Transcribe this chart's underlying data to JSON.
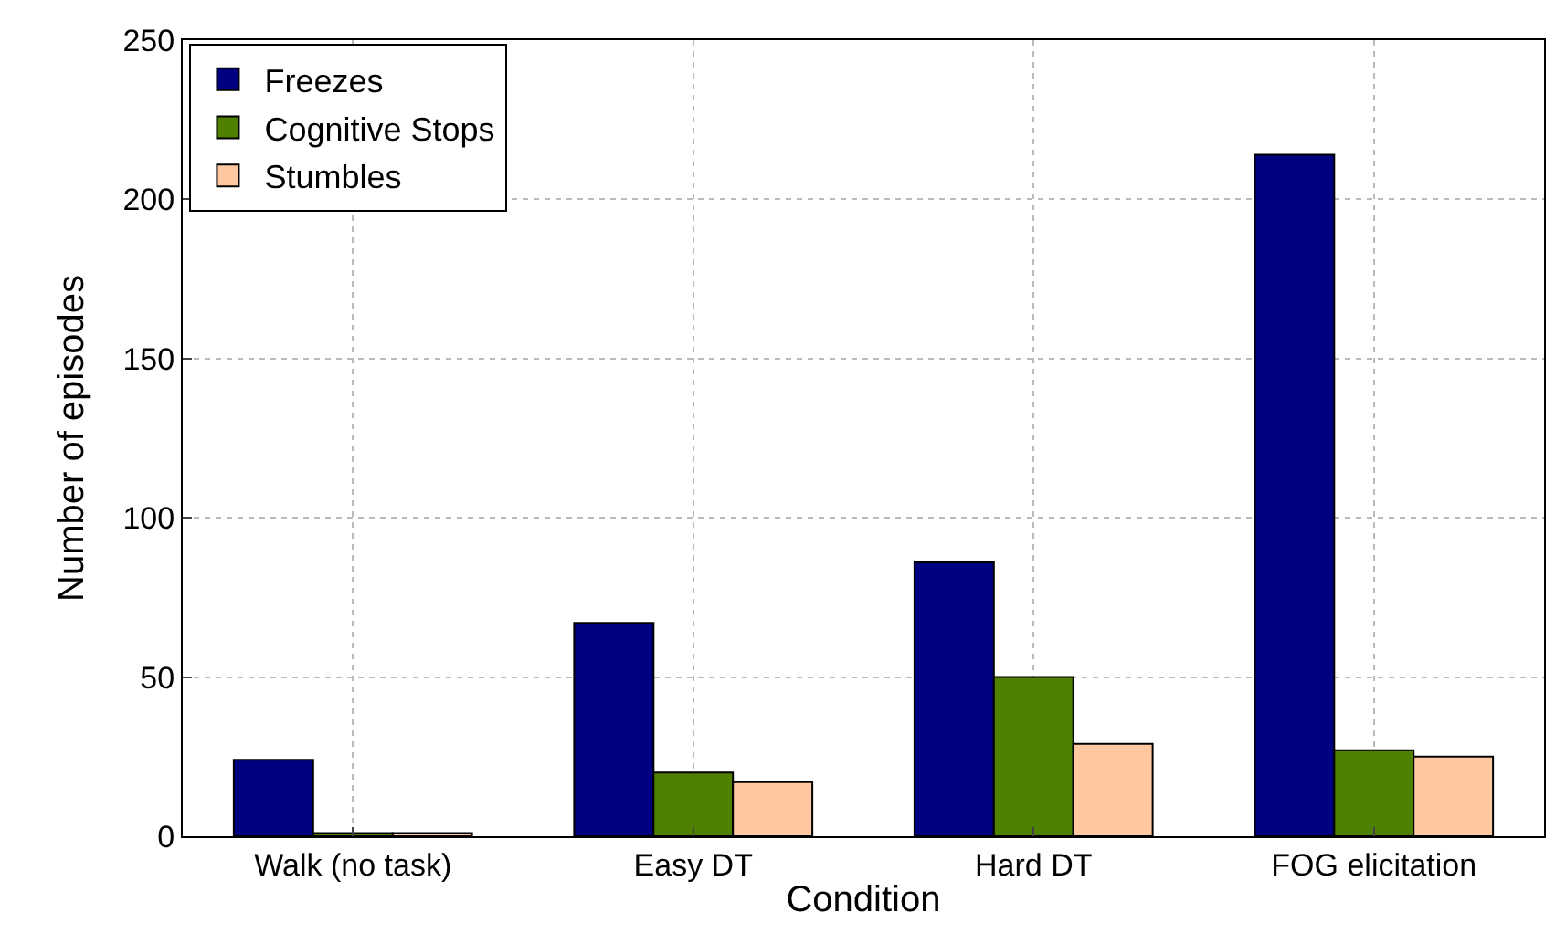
{
  "chart_data": {
    "type": "bar",
    "xlabel": "Condition",
    "ylabel": "Number of episodes",
    "categories": [
      "Walk (no task)",
      "Easy DT",
      "Hard DT",
      "FOG elicitation"
    ],
    "series": [
      {
        "name": "Freezes",
        "color": "#000080",
        "values": [
          24,
          67,
          86,
          214
        ]
      },
      {
        "name": "Cognitive Stops",
        "color": "#4f8000",
        "values": [
          1,
          20,
          50,
          27
        ]
      },
      {
        "name": "Stumbles",
        "color": "#ffc8a0",
        "values": [
          1,
          17,
          29,
          25
        ]
      }
    ],
    "ylim": [
      0,
      250
    ],
    "yticks": [
      0,
      50,
      100,
      150,
      200,
      250
    ],
    "grid": true,
    "legend": "top left"
  }
}
